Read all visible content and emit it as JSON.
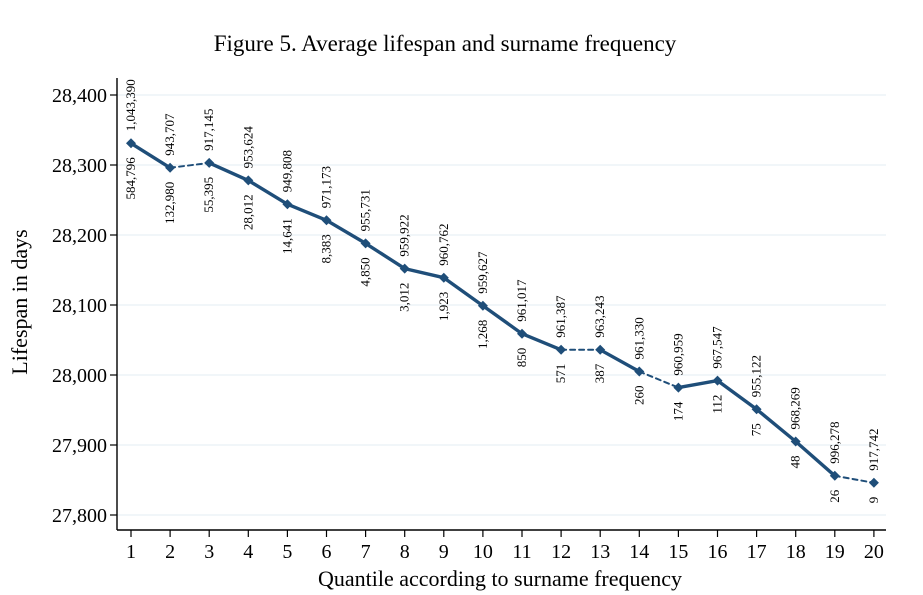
{
  "chart_data": {
    "type": "line",
    "title": "Figure 5. Average lifespan and surname frequency",
    "xlabel": "Quantile according to surname frequency",
    "ylabel": "Lifespan in days",
    "x": [
      1,
      2,
      3,
      4,
      5,
      6,
      7,
      8,
      9,
      10,
      11,
      12,
      13,
      14,
      15,
      16,
      17,
      18,
      19,
      20
    ],
    "y": [
      28331,
      28296,
      28303,
      28278,
      28244,
      28221,
      28188,
      28152,
      28139,
      28099,
      28059,
      28036,
      28036,
      28005,
      27982,
      27992,
      27951,
      27905,
      27856,
      27846
    ],
    "ylim": [
      27790,
      28420
    ],
    "yticks": [
      27800,
      27900,
      28000,
      28100,
      28200,
      28300,
      28400
    ],
    "ytick_labels": [
      "27,800",
      "27,900",
      "28,000",
      "28,100",
      "28,200",
      "28,300",
      "28,400"
    ],
    "xticks": [
      "1",
      "2",
      "3",
      "4",
      "5",
      "6",
      "7",
      "8",
      "9",
      "10",
      "11",
      "12",
      "13",
      "14",
      "15",
      "16",
      "17",
      "18",
      "19",
      "20"
    ],
    "labels_above": [
      "1,043,390",
      "943,707",
      "917,145",
      "953,624",
      "949,808",
      "971,173",
      "955,731",
      "959,922",
      "960,762",
      "959,627",
      "961,017",
      "961,387",
      "963,243",
      "961,330",
      "960,959",
      "967,547",
      "955,122",
      "968,269",
      "996,278",
      "917,742"
    ],
    "labels_below": [
      "584,796",
      "132,980",
      "55,395",
      "28,012",
      "14,641",
      "8,383",
      "4,850",
      "3,012",
      "1,923",
      "1,268",
      "850",
      "571",
      "387",
      "260",
      "174",
      "112",
      "75",
      "48",
      "26",
      "9"
    ],
    "segment_style": [
      "solid",
      "dashed",
      "solid",
      "solid",
      "solid",
      "solid",
      "solid",
      "solid",
      "solid",
      "solid",
      "solid",
      "dashed",
      "solid",
      "dashed",
      "solid",
      "solid",
      "solid",
      "solid",
      "dashed"
    ],
    "grid": true,
    "line_color": "#1f4e79",
    "grid_color": "#e3edf3"
  }
}
